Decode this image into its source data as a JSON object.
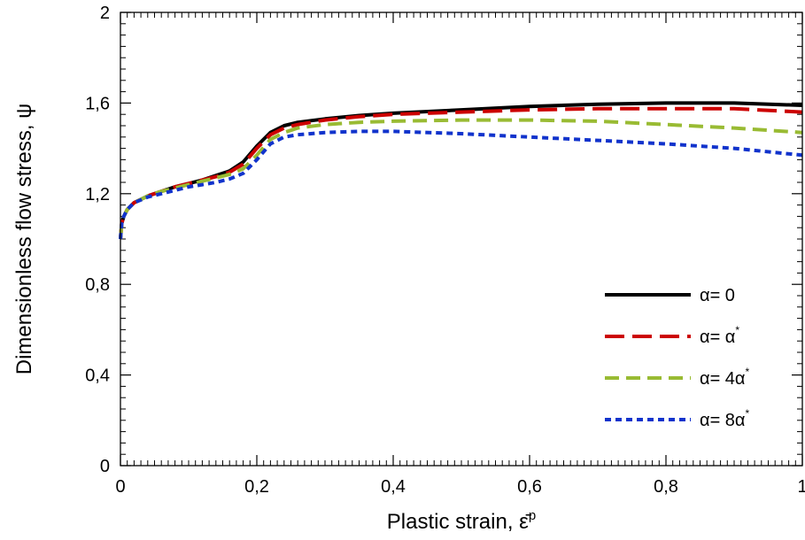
{
  "chart_data": {
    "type": "line",
    "xlabel": "Plastic strain, ",
    "xlabel_symbol": "ε̄",
    "xlabel_sup": "p",
    "ylabel": "Dimensionless flow stress, ψ",
    "xlim": [
      0,
      1
    ],
    "ylim": [
      0,
      2
    ],
    "x_ticks": [
      0,
      0.2,
      0.4,
      0.6,
      0.8,
      1
    ],
    "x_tick_labels": [
      "0",
      "0,2",
      "0,4",
      "0,6",
      "0,8",
      "1"
    ],
    "y_ticks": [
      0,
      0.4,
      0.8,
      1.2,
      1.6,
      2
    ],
    "y_tick_labels": [
      "0",
      "0,4",
      "0,8",
      "1,2",
      "1,6",
      "2"
    ],
    "grid": false,
    "legend_position": "bottom-right",
    "series": [
      {
        "name": "α= 0",
        "label_main": "α= 0",
        "label_sup": "",
        "color": "#000000",
        "dash": "solid",
        "points": [
          [
            0,
            1.0
          ],
          [
            0.002,
            1.07
          ],
          [
            0.005,
            1.1
          ],
          [
            0.01,
            1.13
          ],
          [
            0.02,
            1.16
          ],
          [
            0.04,
            1.19
          ],
          [
            0.06,
            1.21
          ],
          [
            0.08,
            1.23
          ],
          [
            0.1,
            1.245
          ],
          [
            0.12,
            1.26
          ],
          [
            0.14,
            1.28
          ],
          [
            0.16,
            1.3
          ],
          [
            0.18,
            1.34
          ],
          [
            0.2,
            1.41
          ],
          [
            0.22,
            1.47
          ],
          [
            0.24,
            1.5
          ],
          [
            0.26,
            1.515
          ],
          [
            0.3,
            1.53
          ],
          [
            0.35,
            1.545
          ],
          [
            0.4,
            1.555
          ],
          [
            0.5,
            1.57
          ],
          [
            0.6,
            1.585
          ],
          [
            0.7,
            1.595
          ],
          [
            0.8,
            1.6
          ],
          [
            0.9,
            1.6
          ],
          [
            1.0,
            1.59
          ]
        ]
      },
      {
        "name": "α= α*",
        "label_main": "α= α",
        "label_sup": "*",
        "color": "#cc0000",
        "dash": "longdash",
        "points": [
          [
            0,
            1.0
          ],
          [
            0.002,
            1.07
          ],
          [
            0.005,
            1.1
          ],
          [
            0.01,
            1.13
          ],
          [
            0.02,
            1.16
          ],
          [
            0.04,
            1.19
          ],
          [
            0.06,
            1.21
          ],
          [
            0.08,
            1.23
          ],
          [
            0.1,
            1.245
          ],
          [
            0.12,
            1.26
          ],
          [
            0.14,
            1.275
          ],
          [
            0.16,
            1.295
          ],
          [
            0.18,
            1.33
          ],
          [
            0.2,
            1.4
          ],
          [
            0.22,
            1.46
          ],
          [
            0.24,
            1.49
          ],
          [
            0.26,
            1.505
          ],
          [
            0.3,
            1.525
          ],
          [
            0.35,
            1.54
          ],
          [
            0.4,
            1.55
          ],
          [
            0.5,
            1.56
          ],
          [
            0.6,
            1.57
          ],
          [
            0.7,
            1.575
          ],
          [
            0.8,
            1.575
          ],
          [
            0.9,
            1.575
          ],
          [
            1.0,
            1.56
          ]
        ]
      },
      {
        "name": "α= 4α*",
        "label_main": "α= 4α",
        "label_sup": "*",
        "color": "#99bb33",
        "dash": "dash",
        "points": [
          [
            0,
            1.0
          ],
          [
            0.002,
            1.07
          ],
          [
            0.005,
            1.1
          ],
          [
            0.01,
            1.13
          ],
          [
            0.02,
            1.16
          ],
          [
            0.04,
            1.19
          ],
          [
            0.06,
            1.21
          ],
          [
            0.08,
            1.225
          ],
          [
            0.1,
            1.24
          ],
          [
            0.12,
            1.255
          ],
          [
            0.14,
            1.27
          ],
          [
            0.16,
            1.285
          ],
          [
            0.18,
            1.31
          ],
          [
            0.2,
            1.37
          ],
          [
            0.22,
            1.44
          ],
          [
            0.24,
            1.47
          ],
          [
            0.26,
            1.49
          ],
          [
            0.3,
            1.505
          ],
          [
            0.35,
            1.515
          ],
          [
            0.4,
            1.52
          ],
          [
            0.5,
            1.525
          ],
          [
            0.6,
            1.525
          ],
          [
            0.7,
            1.52
          ],
          [
            0.8,
            1.505
          ],
          [
            0.9,
            1.49
          ],
          [
            1.0,
            1.47
          ]
        ]
      },
      {
        "name": "α= 8α*",
        "label_main": "α= 8α",
        "label_sup": "*",
        "color": "#1133cc",
        "dash": "shortdash",
        "points": [
          [
            0,
            1.0
          ],
          [
            0.002,
            1.07
          ],
          [
            0.005,
            1.1
          ],
          [
            0.01,
            1.13
          ],
          [
            0.02,
            1.16
          ],
          [
            0.04,
            1.185
          ],
          [
            0.06,
            1.2
          ],
          [
            0.08,
            1.215
          ],
          [
            0.1,
            1.23
          ],
          [
            0.12,
            1.24
          ],
          [
            0.14,
            1.25
          ],
          [
            0.16,
            1.265
          ],
          [
            0.18,
            1.29
          ],
          [
            0.2,
            1.35
          ],
          [
            0.22,
            1.42
          ],
          [
            0.24,
            1.45
          ],
          [
            0.26,
            1.46
          ],
          [
            0.3,
            1.47
          ],
          [
            0.35,
            1.475
          ],
          [
            0.4,
            1.475
          ],
          [
            0.5,
            1.465
          ],
          [
            0.6,
            1.45
          ],
          [
            0.7,
            1.435
          ],
          [
            0.8,
            1.42
          ],
          [
            0.9,
            1.4
          ],
          [
            1.0,
            1.37
          ]
        ]
      }
    ]
  }
}
